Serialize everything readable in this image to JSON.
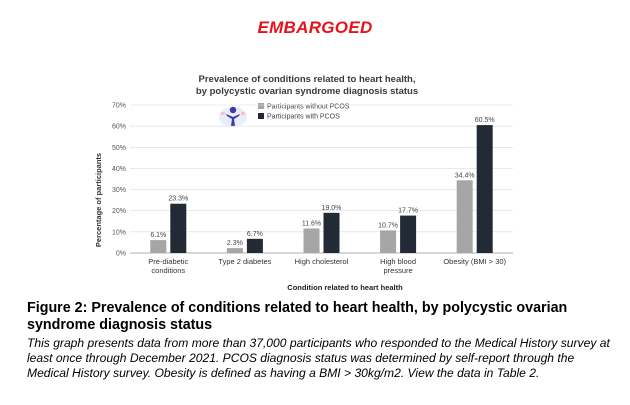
{
  "header": {
    "embargo_label": "EMBARGOED"
  },
  "chart_data": {
    "type": "bar",
    "title_line1": "Prevalence of conditions related to heart health,",
    "title_line2": "by polycystic ovarian syndrome diagnosis status",
    "categories": [
      [
        "Pre-diabetic",
        "conditions"
      ],
      [
        "Type 2 diabetes"
      ],
      [
        "High cholesterol"
      ],
      [
        "High blood",
        "pressure"
      ],
      [
        "Obesity (BMI > 30)"
      ]
    ],
    "series": [
      {
        "name": "Participants without PCOS",
        "color": "#a6a6a6",
        "values": [
          6.1,
          2.3,
          11.6,
          10.7,
          34.4
        ],
        "labels": [
          "6.1%",
          "2.3%",
          "11.6%",
          "10.7%",
          "34.4%"
        ]
      },
      {
        "name": "Participants with PCOS",
        "color": "#222a36",
        "values": [
          23.3,
          6.7,
          19.0,
          17.7,
          60.5
        ],
        "labels": [
          "23.3%",
          "6.7%",
          "19.0%",
          "17.7%",
          "60.5%"
        ]
      }
    ],
    "xlabel": "Condition related to heart health",
    "ylabel": "Percentage of participants",
    "ylim": [
      0,
      70
    ],
    "yticks": [
      0,
      10,
      20,
      30,
      40,
      50,
      60,
      70
    ],
    "ytick_labels": [
      "0%",
      "10%",
      "20%",
      "30%",
      "40%",
      "50%",
      "60%",
      "70%"
    ],
    "legend_position": "top-center"
  },
  "caption": {
    "title": "Figure 2: Prevalence of conditions related to heart health, by polycystic ovarian syndrome diagnosis status",
    "body": "This graph presents data from more than 37,000 participants who responded to the Medical History survey at least once through December 2021. PCOS diagnosis status was determined by self-report through the Medical History survey. Obesity is defined as having a BMI > 30kg/m2. View the data in Table 2."
  }
}
